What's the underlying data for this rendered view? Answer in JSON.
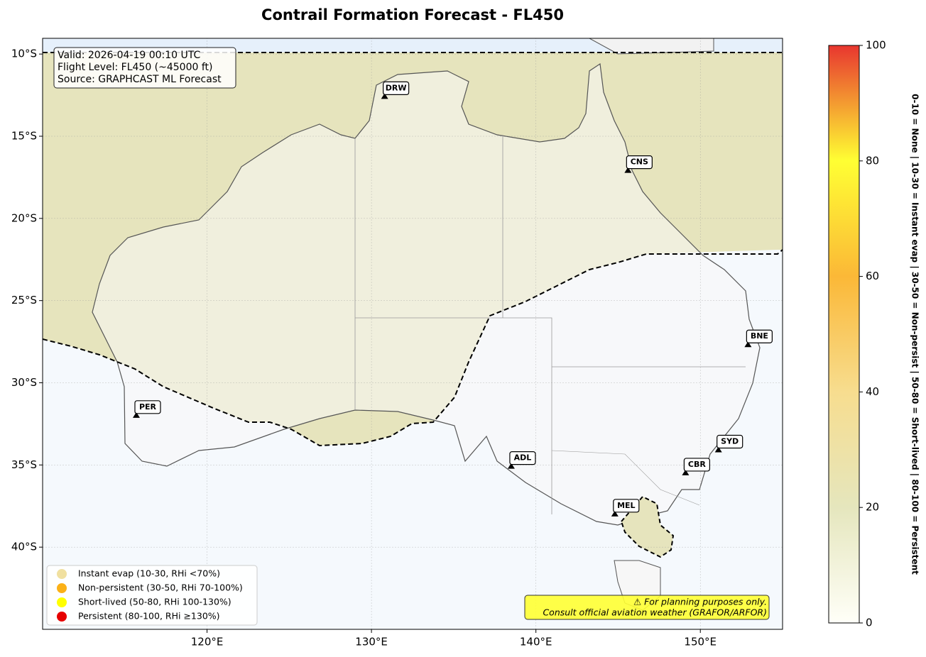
{
  "title": "Contrail Formation Forecast - FL450",
  "info": [
    "Valid: 2026-04-19 00:10 UTC",
    "Flight Level: FL450 (~45000 ft)",
    "Source: GRAPHCAST ML Forecast"
  ],
  "map": {
    "xlim": [
      110,
      155
    ],
    "ylim": [
      -45,
      -9
    ],
    "xticks": [
      {
        "value": 120,
        "label": "120°E"
      },
      {
        "value": 130,
        "label": "130°E"
      },
      {
        "value": 140,
        "label": "140°E"
      },
      {
        "value": 150,
        "label": "150°E"
      }
    ],
    "yticks": [
      {
        "value": -10,
        "label": "10°S"
      },
      {
        "value": -15,
        "label": "15°S"
      },
      {
        "value": -20,
        "label": "20°S"
      },
      {
        "value": -25,
        "label": "25°S"
      },
      {
        "value": -30,
        "label": "30°S"
      },
      {
        "value": -35,
        "label": "35°S"
      },
      {
        "value": -40,
        "label": "40°S"
      }
    ],
    "grid": true
  },
  "airports": [
    {
      "code": "DRW",
      "lon": 130.8,
      "lat": -12.6
    },
    {
      "code": "CNS",
      "lon": 145.6,
      "lat": -17.1
    },
    {
      "code": "BNE",
      "lon": 152.9,
      "lat": -27.7
    },
    {
      "code": "PER",
      "lon": 115.7,
      "lat": -32.0
    },
    {
      "code": "SYD",
      "lon": 151.1,
      "lat": -34.1
    },
    {
      "code": "ADL",
      "lon": 138.5,
      "lat": -35.1
    },
    {
      "code": "CBR",
      "lon": 149.1,
      "lat": -35.5
    },
    {
      "code": "MEL",
      "lon": 144.8,
      "lat": -38.0
    }
  ],
  "legend": [
    {
      "label": "Instant evap (10-30, RHi <70%)",
      "color": "#f0e0a0"
    },
    {
      "label": "Non-persistent (30-50, RHi 70-100%)",
      "color": "#fbb117"
    },
    {
      "label": "Short-lived (50-80, RHi 100-130%)",
      "color": "#ffff00"
    },
    {
      "label": "Persistent (80-100, RHi ≥130%)",
      "color": "#e60000"
    }
  ],
  "disclaimer": [
    "⚠ For planning purposes only.",
    "Consult official aviation weather (GRAFOR/ARFOR)"
  ],
  "colorbar": {
    "lim": [
      0,
      100
    ],
    "ticks": [
      0,
      20,
      40,
      60,
      80,
      100
    ],
    "label": "0-10 = None  |  10-30 = Instant evap  |  30-50 = Non-persist  |  50-80 = Short-lived  |  80-100 = Persistent"
  }
}
